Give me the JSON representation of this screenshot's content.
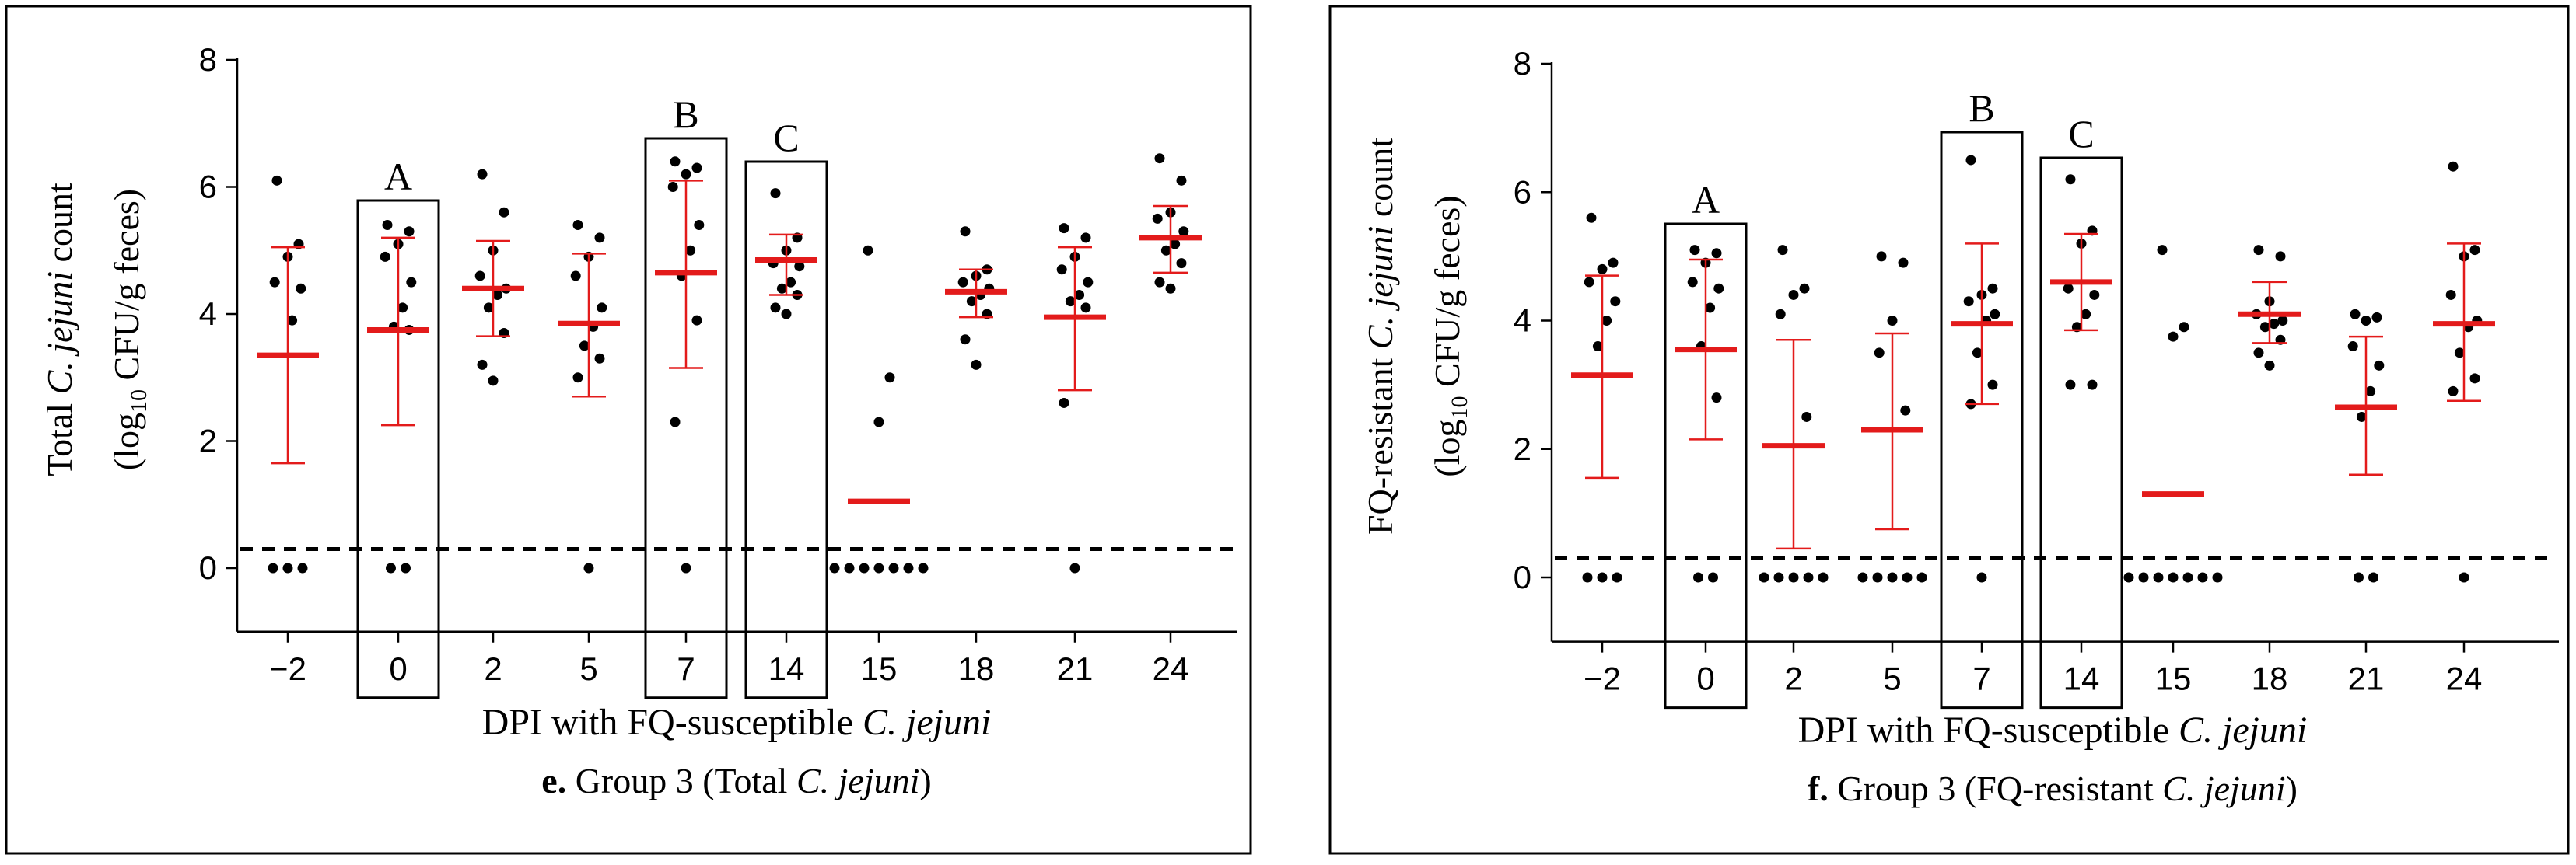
{
  "chart_data": [
    {
      "panel_id": "e",
      "type": "scatter",
      "y_title_line1_pre": "Total ",
      "y_title_line1_em": "C. jejuni",
      "y_title_line1_post": " count",
      "y_title_line2_pre": "(log",
      "y_title_line2_sub": "10",
      "y_title_line2_post": " CFU/g feces)",
      "x_title_pre": "DPI with FQ-susceptible ",
      "x_title_em": "C. jejuni",
      "caption_bold": "e.",
      "caption_pre": " Group 3 (Total ",
      "caption_em": "C. jejuni",
      "caption_post": ")",
      "ylim": [
        -1,
        8
      ],
      "yticks": [
        0,
        2,
        4,
        6,
        8
      ],
      "detection_limit": 0.3,
      "categories": [
        "−2",
        "0",
        "2",
        "5",
        "7",
        "14",
        "15",
        "18",
        "21",
        "24"
      ],
      "boxes": [
        {
          "index": 1,
          "label": "A"
        },
        {
          "index": 4,
          "label": "B"
        },
        {
          "index": 5,
          "label": "C"
        }
      ],
      "points": [
        [
          6.1,
          5.1,
          4.9,
          4.5,
          4.4,
          3.9,
          0,
          0,
          0
        ],
        [
          5.4,
          5.3,
          5.1,
          4.9,
          4.5,
          4.1,
          3.8,
          3.75,
          0,
          0
        ],
        [
          6.2,
          5.6,
          5.0,
          4.6,
          4.4,
          4.3,
          4.1,
          3.7,
          3.2,
          2.95
        ],
        [
          5.4,
          5.2,
          4.9,
          4.6,
          4.1,
          3.8,
          3.5,
          3.3,
          3.0,
          0
        ],
        [
          6.4,
          6.3,
          6.2,
          6.0,
          5.4,
          5.0,
          4.6,
          3.9,
          2.3,
          0
        ],
        [
          5.9,
          5.2,
          5.0,
          4.8,
          4.75,
          4.5,
          4.4,
          4.3,
          4.1,
          4.0
        ],
        [
          5.0,
          3.0,
          2.3,
          0,
          0,
          0,
          0,
          0,
          0,
          0
        ],
        [
          5.3,
          4.7,
          4.6,
          4.5,
          4.4,
          4.3,
          4.2,
          4.0,
          3.6,
          3.2
        ],
        [
          5.35,
          5.2,
          4.9,
          4.7,
          4.5,
          4.3,
          4.2,
          4.1,
          2.6,
          0
        ],
        [
          6.45,
          6.1,
          5.6,
          5.5,
          5.3,
          5.1,
          5.0,
          4.8,
          4.5,
          4.4
        ]
      ],
      "means": [
        3.35,
        3.75,
        4.4,
        3.85,
        4.65,
        4.85,
        1.05,
        4.35,
        3.95,
        5.2
      ],
      "err_low": [
        1.65,
        2.25,
        3.65,
        2.7,
        3.15,
        4.3,
        null,
        3.95,
        2.8,
        4.65
      ],
      "err_high": [
        5.05,
        5.2,
        5.15,
        4.95,
        6.1,
        5.25,
        null,
        4.7,
        5.05,
        5.7
      ]
    },
    {
      "panel_id": "f",
      "type": "scatter",
      "y_title_line1_pre": "FQ-resistant ",
      "y_title_line1_em": "C. jejuni",
      "y_title_line1_post": " count",
      "y_title_line2_pre": "(log",
      "y_title_line2_sub": "10",
      "y_title_line2_post": " CFU/g feces)",
      "x_title_pre": "DPI with FQ-susceptible ",
      "x_title_em": "C. jejuni",
      "caption_bold": "f.",
      "caption_pre": " Group 3 (FQ-resistant ",
      "caption_em": "C. jejuni",
      "caption_post": ")",
      "ylim": [
        -1,
        8
      ],
      "yticks": [
        0,
        2,
        4,
        6,
        8
      ],
      "detection_limit": 0.3,
      "categories": [
        "−2",
        "0",
        "2",
        "5",
        "7",
        "14",
        "15",
        "18",
        "21",
        "24"
      ],
      "boxes": [
        {
          "index": 1,
          "label": "A"
        },
        {
          "index": 4,
          "label": "B"
        },
        {
          "index": 5,
          "label": "C"
        }
      ],
      "points": [
        [
          5.6,
          4.9,
          4.8,
          4.6,
          4.3,
          4.0,
          3.6,
          0,
          0,
          0
        ],
        [
          5.1,
          5.05,
          4.9,
          4.6,
          4.5,
          4.2,
          3.6,
          2.8,
          0,
          0
        ],
        [
          5.1,
          4.5,
          4.4,
          4.1,
          2.5,
          0,
          0,
          0,
          0,
          0
        ],
        [
          5.0,
          4.9,
          4.0,
          3.5,
          2.6,
          0,
          0,
          0,
          0,
          0
        ],
        [
          6.5,
          4.5,
          4.4,
          4.3,
          4.1,
          4.0,
          3.5,
          3.0,
          2.7,
          0
        ],
        [
          6.2,
          5.4,
          5.2,
          4.5,
          4.4,
          4.1,
          3.9,
          3.0,
          3.0
        ],
        [
          5.1,
          3.9,
          3.75,
          0,
          0,
          0,
          0,
          0,
          0,
          0
        ],
        [
          5.1,
          5.0,
          4.3,
          4.1,
          4.0,
          3.95,
          3.9,
          3.7,
          3.5,
          3.3
        ],
        [
          4.1,
          4.05,
          4.0,
          3.6,
          3.3,
          2.9,
          2.5,
          0,
          0
        ],
        [
          6.4,
          5.1,
          5.0,
          4.4,
          4.0,
          3.9,
          3.5,
          3.1,
          2.9,
          0
        ]
      ],
      "means": [
        3.15,
        3.55,
        2.05,
        2.3,
        3.95,
        4.6,
        1.3,
        4.1,
        2.65,
        3.95
      ],
      "err_low": [
        1.55,
        2.15,
        0.45,
        0.75,
        2.7,
        3.85,
        null,
        3.65,
        1.6,
        2.75
      ],
      "err_high": [
        4.7,
        4.95,
        3.7,
        3.8,
        5.2,
        5.35,
        null,
        4.6,
        3.75,
        5.2
      ]
    }
  ]
}
